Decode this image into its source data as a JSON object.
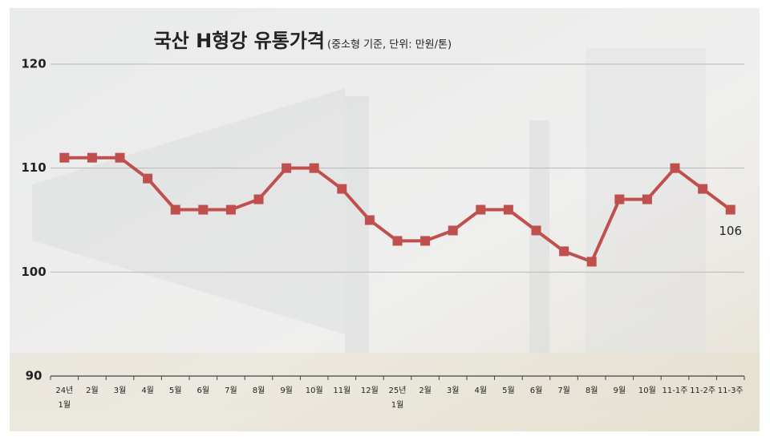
{
  "chart_data": {
    "type": "line",
    "title": "국산 H형강 유통가격",
    "subtitle": "(중소형 기준, 단위: 만원/톤)",
    "categories": [
      "24년 1월",
      "2월",
      "3월",
      "4월",
      "5월",
      "6월",
      "7월",
      "8월",
      "9월",
      "10월",
      "11월",
      "12월",
      "25년 1월",
      "2월",
      "3월",
      "4월",
      "5월",
      "6월",
      "7월",
      "8월",
      "9월",
      "10월",
      "11-1주",
      "11-2주",
      "11-3주"
    ],
    "series": [
      {
        "name": "H형강 유통가격",
        "color": "#c0504d",
        "values": [
          111,
          111,
          111,
          109,
          106,
          106,
          106,
          107,
          110,
          110,
          108,
          105,
          103,
          103,
          104,
          106,
          106,
          104,
          102,
          101,
          107,
          107,
          110,
          108,
          106
        ]
      }
    ],
    "ylim": [
      90,
      120
    ],
    "yticks": [
      90,
      100,
      110,
      120
    ],
    "grid": true
  }
}
